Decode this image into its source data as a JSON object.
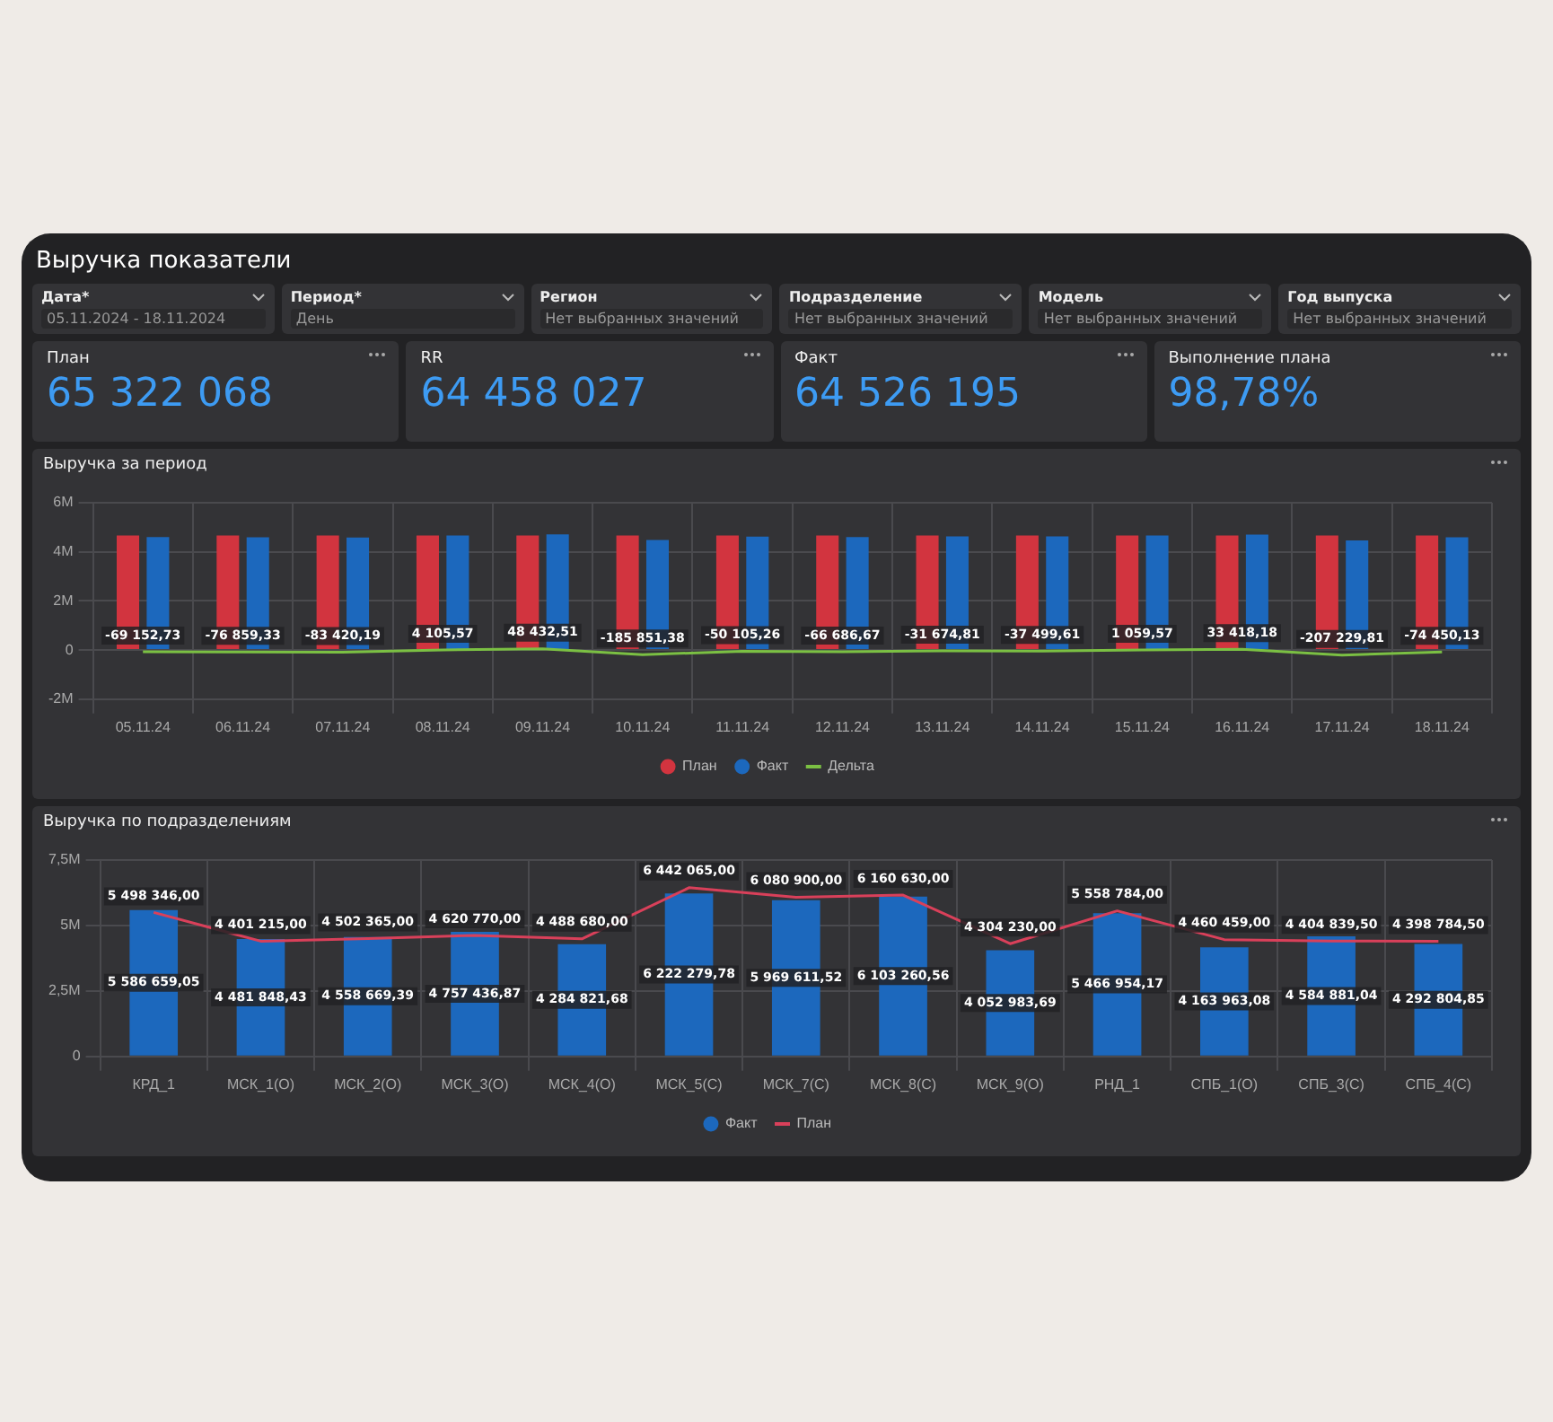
{
  "chart_data": [
    {
      "type": "other",
      "title": "Выручка показатели",
      "annotations": [
        "Дата*",
        "05.11.2024 - 18.11.2024",
        "Период*",
        "День",
        "Регион",
        "Нет выбранных значений",
        "Подразделение",
        "Нет выбранных значений",
        "Модель",
        "Нет выбранных значений",
        "Год выпуска",
        "Нет выбранных значений"
      ],
      "categories": [
        "План",
        "RR",
        "Факт",
        "Выполнение плана"
      ],
      "value_labels": [
        "65 322 068",
        "64 458 027",
        "64 526 195",
        "98,78%"
      ]
    },
    {
      "type": "bar",
      "title": "Выручка за период",
      "categories": [
        "05.11.24",
        "06.11.24",
        "07.11.24",
        "08.11.24",
        "09.11.24",
        "10.11.24",
        "11.11.24",
        "12.11.24",
        "13.11.24",
        "14.11.24",
        "15.11.24",
        "16.11.24",
        "17.11.24",
        "18.11.24"
      ],
      "series": [
        {
          "name": "План",
          "type": "bar",
          "color": "#d2343f",
          "values": [
            4670000,
            4670000,
            4670000,
            4670000,
            4670000,
            4670000,
            4670000,
            4670000,
            4670000,
            4670000,
            4670000,
            4670000,
            4670000,
            4670000
          ]
        },
        {
          "name": "Факт",
          "type": "bar",
          "color": "#1c68bd",
          "values": [
            4600000,
            4590000,
            4580000,
            4670000,
            4710000,
            4480000,
            4620000,
            4600000,
            4630000,
            4630000,
            4670000,
            4700000,
            4460000,
            4590000
          ]
        },
        {
          "name": "Дельта",
          "type": "line",
          "color": "#7bc043",
          "values": [
            -69152.73,
            -76859.33,
            -83420.19,
            4105.57,
            48432.51,
            -185851.38,
            -50105.26,
            -66686.67,
            -31674.81,
            -37499.61,
            1059.57,
            33418.18,
            -207229.81,
            -74450.13
          ],
          "value_labels": [
            "-69 152,73",
            "-76 859,33",
            "-83 420,19",
            "4 105,57",
            "48 432,51",
            "-185 851,38",
            "-50 105,26",
            "-66 686,67",
            "-31 674,81",
            "-37 499,61",
            "1 059,57",
            "33 418,18",
            "-207 229,81",
            "-74 450,13"
          ]
        }
      ],
      "ylim": [
        -2000000,
        6000000
      ],
      "yticks": [
        {
          "value": -2000000,
          "label": "-2M"
        },
        0,
        {
          "value": 2000000,
          "label": "2M"
        },
        {
          "value": 4000000,
          "label": "4M"
        },
        {
          "value": 6000000,
          "label": "6M"
        }
      ],
      "grid": true,
      "legend": "bottom",
      "marker": "none"
    },
    {
      "type": "bar",
      "title": "Выручка по подразделениям",
      "categories": [
        "КРД_1",
        "МСК_1(О)",
        "МСК_2(О)",
        "МСК_3(О)",
        "МСК_4(О)",
        "МСК_5(С)",
        "МСК_7(С)",
        "МСК_8(С)",
        "МСК_9(О)",
        "РНД_1",
        "СПБ_1(О)",
        "СПБ_3(С)",
        "СПБ_4(С)"
      ],
      "series": [
        {
          "name": "Факт",
          "type": "bar",
          "color": "#1c68bd",
          "values": [
            5586659.05,
            4481848.43,
            4558669.39,
            4757436.87,
            4284821.68,
            6222279.78,
            5969611.52,
            6103260.56,
            4052983.69,
            5466954.17,
            4163963.08,
            4584881.04,
            4292804.85
          ],
          "value_labels": [
            "5 586 659,05",
            "4 481 848,43",
            "4 558 669,39",
            "4 757 436,87",
            "4 284 821,68",
            "6 222 279,78",
            "5 969 611,52",
            "6 103 260,56",
            "4 052 983,69",
            "5 466 954,17",
            "4 163 963,08",
            "4 584 881,04",
            "4 292 804,85"
          ]
        },
        {
          "name": "План",
          "type": "line",
          "color": "#d9405a",
          "values": [
            5498346,
            4401215,
            4502365,
            4620770,
            4488680,
            6442065,
            6080900,
            6160630,
            4304230,
            5558784,
            4460459,
            4404839.5,
            4398784.5
          ],
          "value_labels": [
            "5 498 346,00",
            "4 401 215,00",
            "4 502 365,00",
            "4 620 770,00",
            "4 488 680,00",
            "6 442 065,00",
            "6 080 900,00",
            "6 160 630,00",
            "4 304 230,00",
            "5 558 784,00",
            "4 460 459,00",
            "4 404 839,50",
            "4 398 784,50"
          ]
        }
      ],
      "ylim": [
        0,
        7500000
      ],
      "yticks": [
        0,
        {
          "value": 2500000,
          "label": "2,5M"
        },
        {
          "value": 5000000,
          "label": "5M"
        },
        {
          "value": 7500000,
          "label": "7,5M"
        }
      ],
      "grid": true,
      "legend": "bottom",
      "marker": "none"
    }
  ]
}
